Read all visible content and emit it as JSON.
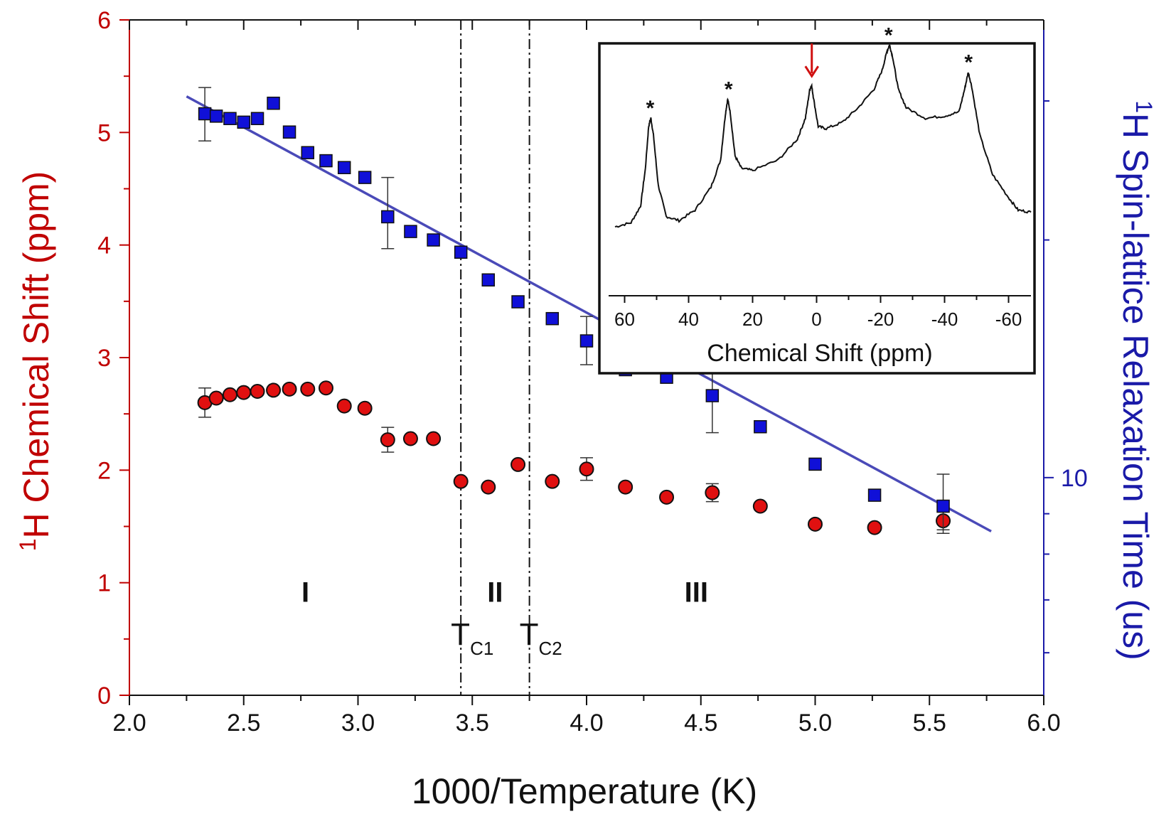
{
  "chart_data": [
    {
      "type": "scatter",
      "xlabel": "1000/Temperature (K)",
      "ylabel_left": "H Chemical Shift (ppm)",
      "ylabel_left_sup": "1",
      "ylabel_right": "H Spin-lattice Relaxation Time (us)",
      "ylabel_right_sup": "1",
      "xlim": [
        2.0,
        6.0
      ],
      "xticks": [
        "2.0",
        "2.5",
        "3.0",
        "3.5",
        "4.0",
        "4.5",
        "5.0",
        "5.5",
        "6.0"
      ],
      "ylim_left": [
        0,
        6
      ],
      "yticks_left": [
        "0",
        "1",
        "2",
        "3",
        "4",
        "5",
        "6"
      ],
      "yscale_right": "log",
      "ylim_right": [
        5.3,
        38
      ],
      "yticks_right_labeled": [
        {
          "value": 10,
          "label": "10"
        }
      ],
      "yticks_right_minor": [
        6,
        7,
        8,
        9,
        20,
        30
      ],
      "left_color": "#c00000",
      "right_color": "#1a1aa8",
      "series": [
        {
          "axis": "left",
          "marker": "circle",
          "color": "#e01010",
          "x": [
            2.33,
            2.38,
            2.44,
            2.5,
            2.56,
            2.63,
            2.7,
            2.78,
            2.86,
            2.94,
            3.03,
            3.13,
            3.23,
            3.33,
            3.45,
            3.57,
            3.7,
            3.85,
            4.0,
            4.17,
            4.35,
            4.55,
            4.76,
            5.0,
            5.26,
            5.56
          ],
          "y": [
            2.6,
            2.64,
            2.67,
            2.69,
            2.7,
            2.71,
            2.72,
            2.72,
            2.73,
            2.57,
            2.55,
            2.27,
            2.28,
            2.28,
            1.9,
            1.85,
            2.05,
            1.9,
            2.01,
            1.85,
            1.76,
            1.8,
            1.68,
            1.52,
            1.49,
            1.55
          ],
          "error": [
            0.13,
            0,
            0,
            0,
            0,
            0,
            0,
            0,
            0,
            0,
            0,
            0.11,
            0,
            0,
            0,
            0,
            0,
            0,
            0.1,
            0,
            0,
            0.08,
            0,
            0,
            0,
            0.08
          ]
        },
        {
          "axis": "right",
          "marker": "square",
          "color": "#1010d8",
          "x": [
            2.33,
            2.38,
            2.44,
            2.5,
            2.56,
            2.63,
            2.7,
            2.78,
            2.86,
            2.94,
            3.03,
            3.13,
            3.23,
            3.33,
            3.45,
            3.57,
            3.7,
            3.85,
            4.0,
            4.17,
            4.35,
            4.55,
            4.76,
            5.0,
            5.26,
            5.56
          ],
          "y": [
            28.9,
            28.7,
            28.5,
            28.2,
            28.5,
            29.8,
            27.4,
            25.8,
            25.2,
            24.7,
            24.0,
            21.4,
            20.5,
            20.0,
            19.3,
            17.8,
            16.7,
            15.9,
            14.9,
            13.7,
            13.4,
            12.7,
            11.6,
            10.4,
            9.5,
            9.2
          ],
          "error_upper": [
            2.3,
            0,
            0,
            0,
            0,
            0,
            0,
            0,
            0,
            0,
            0,
            2.6,
            0,
            0,
            0,
            0,
            0,
            0,
            1.1,
            0,
            0,
            1.4,
            0,
            0,
            0,
            0.9
          ],
          "error_lower": [
            2.2,
            0,
            0,
            0,
            0,
            0,
            0,
            0,
            0,
            0,
            0,
            1.9,
            0,
            0,
            0,
            0,
            0,
            0,
            1.0,
            0,
            0,
            1.3,
            0,
            0,
            0,
            0.7
          ]
        },
        {
          "axis": "right",
          "marker": "line",
          "color": "#4a4ab8",
          "x": [
            2.25,
            5.77
          ],
          "y": [
            30.4,
            8.55
          ]
        }
      ],
      "vlines": [
        {
          "x": 3.45,
          "style": "dash-dot"
        },
        {
          "x": 3.75,
          "style": "dash-dot"
        }
      ],
      "annotations": {
        "regions": [
          {
            "label": "I",
            "x": 2.77,
            "y": 0.83
          },
          {
            "label": "II",
            "x": 3.6,
            "y": 0.83
          },
          {
            "label": "III",
            "x": 4.48,
            "y": 0.83
          }
        ],
        "transitions": [
          {
            "main": "T",
            "sub": "C1",
            "x": 3.45,
            "y": 0.45
          },
          {
            "main": "T",
            "sub": "C2",
            "x": 3.75,
            "y": 0.45
          }
        ]
      }
    },
    {
      "type": "line",
      "inset": true,
      "xlabel": "Chemical Shift (ppm)",
      "xlim": [
        65,
        -67
      ],
      "xticks": [
        "60",
        "40",
        "20",
        "0",
        "-20",
        "-40",
        "-60"
      ],
      "peaks_marked": [
        {
          "x": 52,
          "marker": "*"
        },
        {
          "x": 27.5,
          "marker": "*"
        },
        {
          "x": 1.5,
          "marker": "arrow",
          "color": "#d01010"
        },
        {
          "x": -22.5,
          "marker": "*"
        },
        {
          "x": -47.5,
          "marker": "*"
        }
      ],
      "spectrum": {
        "x": [
          63,
          58,
          55,
          53.5,
          52.5,
          51.8,
          51,
          49.5,
          47,
          43,
          38,
          33,
          30,
          28.5,
          27.8,
          27,
          25.5,
          23.5,
          20,
          12,
          6,
          3.5,
          2.2,
          1.6,
          1,
          -0.5,
          -3,
          -8,
          -13,
          -18,
          -20.5,
          -22,
          -22.8,
          -23.8,
          -25.5,
          -28,
          -34,
          -40,
          -44.5,
          -46.3,
          -47.4,
          -48.5,
          -51,
          -55,
          -60,
          -63,
          -67
        ],
        "y": [
          0.18,
          0.2,
          0.28,
          0.46,
          0.66,
          0.7,
          0.62,
          0.38,
          0.23,
          0.21,
          0.26,
          0.37,
          0.5,
          0.72,
          0.79,
          0.73,
          0.52,
          0.46,
          0.45,
          0.5,
          0.6,
          0.7,
          0.83,
          0.86,
          0.8,
          0.66,
          0.65,
          0.68,
          0.75,
          0.84,
          0.93,
          1.02,
          1.05,
          0.99,
          0.84,
          0.75,
          0.7,
          0.71,
          0.73,
          0.84,
          0.92,
          0.85,
          0.62,
          0.43,
          0.32,
          0.26,
          0.25
        ]
      },
      "grid": false
    }
  ]
}
